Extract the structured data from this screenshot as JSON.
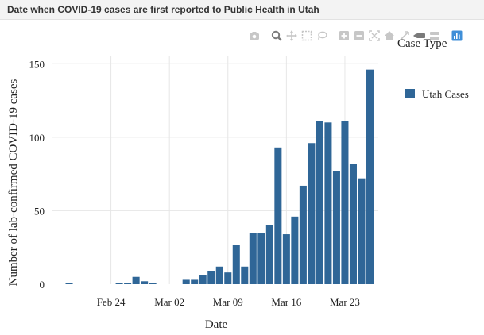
{
  "header": {
    "title": "Date when COVID-19 cases are first reported to Public Health in Utah"
  },
  "modebar": {
    "icons": [
      "camera-icon",
      "zoom-icon",
      "pan-icon",
      "box-select-icon",
      "lasso-select-icon",
      "zoom-in-icon",
      "zoom-out-icon",
      "autoscale-icon",
      "reset-axes-icon",
      "spike-lines-icon",
      "hover-closest-icon",
      "hover-compare-icon",
      "plotly-logo-icon"
    ]
  },
  "colors": {
    "bar": "#2f6697",
    "grid": "#e6e6e6",
    "modebar_icon": "#c7c7c7",
    "modebar_active": "#8a8a8a",
    "plotly_logo": "#3f8fd8"
  },
  "chart_data": {
    "type": "bar",
    "title": "",
    "xlabel": "Date",
    "ylabel": "Number of lab-confirmed COVID-19 cases",
    "x": [
      "2020-02-19",
      "2020-02-20",
      "2020-02-21",
      "2020-02-22",
      "2020-02-23",
      "2020-02-24",
      "2020-02-25",
      "2020-02-26",
      "2020-02-27",
      "2020-02-28",
      "2020-02-29",
      "2020-03-01",
      "2020-03-02",
      "2020-03-03",
      "2020-03-04",
      "2020-03-05",
      "2020-03-06",
      "2020-03-07",
      "2020-03-08",
      "2020-03-09",
      "2020-03-10",
      "2020-03-11",
      "2020-03-12",
      "2020-03-13",
      "2020-03-14",
      "2020-03-15",
      "2020-03-16",
      "2020-03-17",
      "2020-03-18",
      "2020-03-19",
      "2020-03-20",
      "2020-03-21",
      "2020-03-22",
      "2020-03-23",
      "2020-03-24",
      "2020-03-25",
      "2020-03-26"
    ],
    "series": [
      {
        "name": "Utah Cases",
        "values": [
          1,
          0,
          0,
          0,
          0,
          0,
          1,
          1,
          5,
          2,
          1,
          0,
          0,
          0,
          3,
          3,
          6,
          9,
          12,
          8,
          27,
          12,
          35,
          35,
          40,
          93,
          34,
          46,
          67,
          96,
          111,
          110,
          77,
          111,
          82,
          72,
          146
        ]
      }
    ],
    "xticks": [
      {
        "date": "2020-02-24",
        "label": "Feb 24"
      },
      {
        "date": "2020-03-02",
        "label": "Mar 02"
      },
      {
        "date": "2020-03-09",
        "label": "Mar 09"
      },
      {
        "date": "2020-03-16",
        "label": "Mar 16"
      },
      {
        "date": "2020-03-23",
        "label": "Mar 23"
      }
    ],
    "yticks": [
      0,
      50,
      100,
      150
    ],
    "ylim": [
      0,
      155
    ],
    "xlim": [
      "2020-02-17",
      "2020-03-27"
    ],
    "grid": true,
    "legend": {
      "title": "Case Type",
      "position": "right",
      "entries": [
        "Utah Cases"
      ]
    }
  }
}
